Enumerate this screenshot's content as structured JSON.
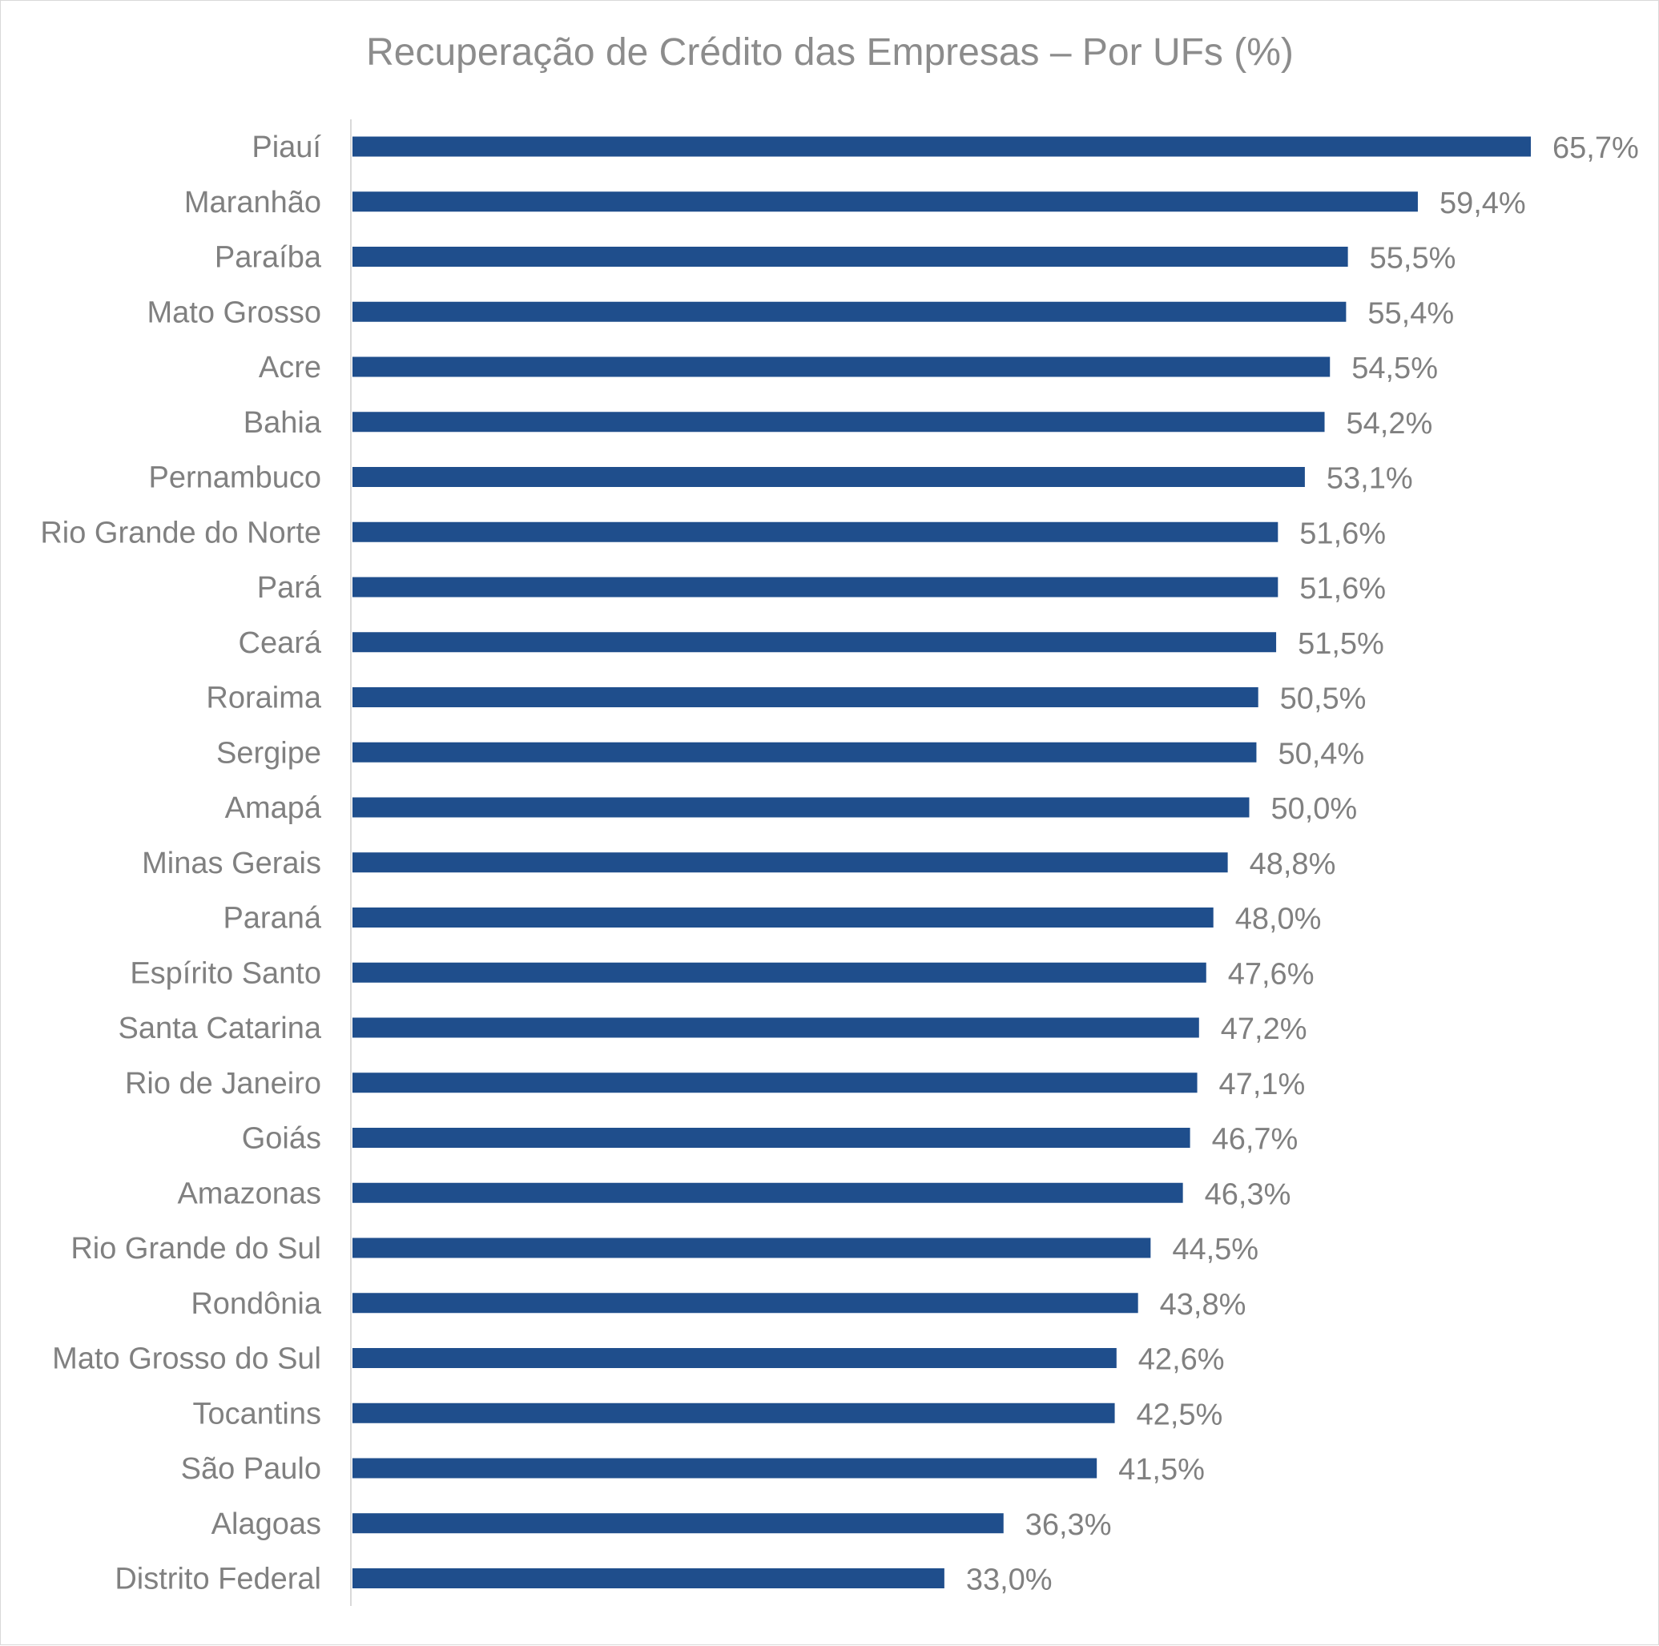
{
  "chart_data": {
    "type": "bar",
    "orientation": "horizontal",
    "title": "Recuperação de Crédito das Empresas – Por UFs (%)",
    "xlabel": "",
    "ylabel": "",
    "value_format": "percent_comma_1dp",
    "xlim": [
      0,
      65.7
    ],
    "grid": false,
    "legend": "none",
    "bar_color": "#1f4e8c",
    "text_color": "#808080",
    "categories": [
      "Piauí",
      "Maranhão",
      "Paraíba",
      "Mato Grosso",
      "Acre",
      "Bahia",
      "Pernambuco",
      "Rio Grande do Norte",
      "Pará",
      "Ceará",
      "Roraima",
      "Sergipe",
      "Amapá",
      "Minas Gerais",
      "Paraná",
      "Espírito Santo",
      "Santa Catarina",
      "Rio de Janeiro",
      "Goiás",
      "Amazonas",
      "Rio Grande do Sul",
      "Rondônia",
      "Mato Grosso do Sul",
      "Tocantins",
      "São Paulo",
      "Alagoas",
      "Distrito Federal"
    ],
    "values": [
      65.7,
      59.4,
      55.5,
      55.4,
      54.5,
      54.2,
      53.1,
      51.6,
      51.6,
      51.5,
      50.5,
      50.4,
      50.0,
      48.8,
      48.0,
      47.6,
      47.2,
      47.1,
      46.7,
      46.3,
      44.5,
      43.8,
      42.6,
      42.5,
      41.5,
      36.3,
      33.0
    ],
    "data_labels": [
      "65,7%",
      "59,4%",
      "55,5%",
      "55,4%",
      "54,5%",
      "54,2%",
      "53,1%",
      "51,6%",
      "51,6%",
      "51,5%",
      "50,5%",
      "50,4%",
      "50,0%",
      "48,8%",
      "48,0%",
      "47,6%",
      "47,2%",
      "47,1%",
      "46,7%",
      "46,3%",
      "44,5%",
      "43,8%",
      "42,6%",
      "42,5%",
      "41,5%",
      "36,3%",
      "33,0%"
    ]
  }
}
